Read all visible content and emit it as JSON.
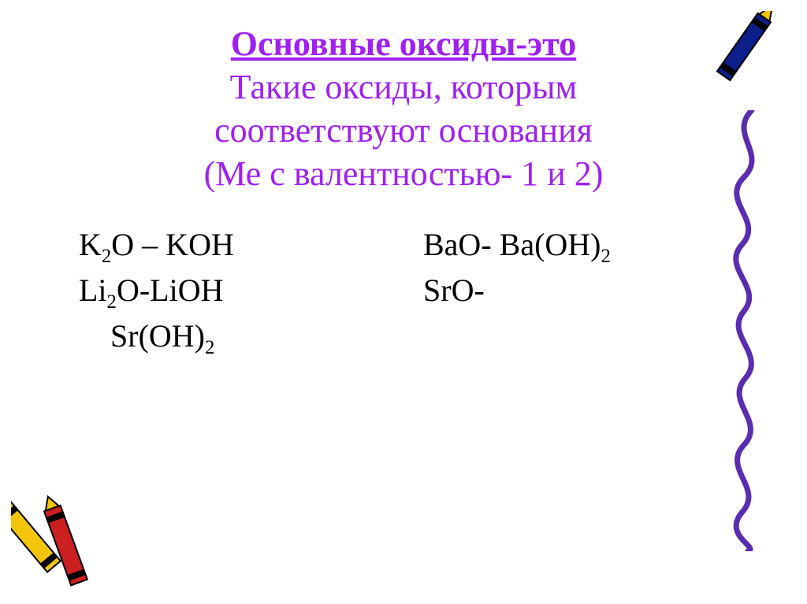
{
  "colors": {
    "background": "#ffffff",
    "title_accent": "#a020f0",
    "body_text": "#000000",
    "crayon_blue": "#0b1e8a",
    "crayon_yellow": "#f3c50a",
    "crayon_red": "#cc1f1f",
    "squiggle": "#5a2db0"
  },
  "title": {
    "line1": "Основные оксиды-это",
    "line2": "Такие оксиды, которым",
    "line3": "соответствуют основания",
    "line4": "(Ме с валентностью- 1 и 2)",
    "fontsize_pt": 33,
    "underline_line1": true
  },
  "body": {
    "fontsize_pt": 30,
    "rows": [
      {
        "left_html": "K<sub>2</sub>O – KOH",
        "right_html": "BaO-  Ba(OH)<sub>2</sub>"
      },
      {
        "left_html": "Li<sub>2</sub>O-LiOH",
        "right_html": "SrO-"
      },
      {
        "left_html": "&nbsp;&nbsp;&nbsp;&nbsp;Sr(OH)<sub>2</sub>",
        "right_html": ""
      }
    ]
  }
}
